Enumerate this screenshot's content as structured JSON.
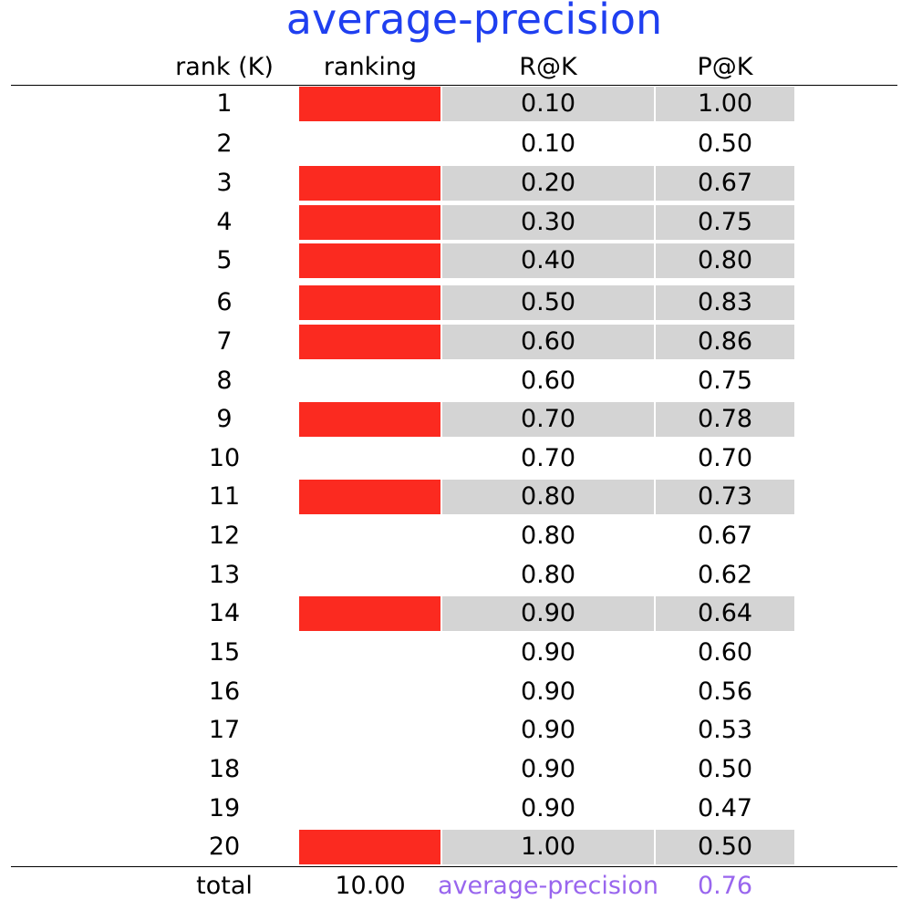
{
  "title": "average-precision",
  "headers": {
    "rank": "rank (K)",
    "ranking": "ranking",
    "recall": "R@K",
    "precision": "P@K"
  },
  "colors": {
    "title": "#1f3ff0",
    "relevant": "#fb2a20",
    "shade": "#d4d4d4",
    "footer_accent": "#9966ee"
  },
  "rows": [
    {
      "rank": "1",
      "relevant": true,
      "recall": "0.10",
      "precision": "1.00"
    },
    {
      "rank": "2",
      "relevant": false,
      "recall": "0.10",
      "precision": "0.50"
    },
    {
      "rank": "3",
      "relevant": true,
      "recall": "0.20",
      "precision": "0.67"
    },
    {
      "rank": "4",
      "relevant": true,
      "recall": "0.30",
      "precision": "0.75"
    },
    {
      "rank": "5",
      "relevant": true,
      "recall": "0.40",
      "precision": "0.80"
    },
    {
      "rank": "6",
      "relevant": true,
      "recall": "0.50",
      "precision": "0.83"
    },
    {
      "rank": "7",
      "relevant": true,
      "recall": "0.60",
      "precision": "0.86"
    },
    {
      "rank": "8",
      "relevant": false,
      "recall": "0.60",
      "precision": "0.75"
    },
    {
      "rank": "9",
      "relevant": true,
      "recall": "0.70",
      "precision": "0.78"
    },
    {
      "rank": "10",
      "relevant": false,
      "recall": "0.70",
      "precision": "0.70"
    },
    {
      "rank": "11",
      "relevant": true,
      "recall": "0.80",
      "precision": "0.73"
    },
    {
      "rank": "12",
      "relevant": false,
      "recall": "0.80",
      "precision": "0.67"
    },
    {
      "rank": "13",
      "relevant": false,
      "recall": "0.80",
      "precision": "0.62"
    },
    {
      "rank": "14",
      "relevant": true,
      "recall": "0.90",
      "precision": "0.64"
    },
    {
      "rank": "15",
      "relevant": false,
      "recall": "0.90",
      "precision": "0.60"
    },
    {
      "rank": "16",
      "relevant": false,
      "recall": "0.90",
      "precision": "0.56"
    },
    {
      "rank": "17",
      "relevant": false,
      "recall": "0.90",
      "precision": "0.53"
    },
    {
      "rank": "18",
      "relevant": false,
      "recall": "0.90",
      "precision": "0.50"
    },
    {
      "rank": "19",
      "relevant": false,
      "recall": "0.90",
      "precision": "0.47"
    },
    {
      "rank": "20",
      "relevant": true,
      "recall": "1.00",
      "precision": "0.50"
    }
  ],
  "footer": {
    "label": "total",
    "total": "10.00",
    "metric_label": "average-precision",
    "metric_value": "0.76"
  }
}
